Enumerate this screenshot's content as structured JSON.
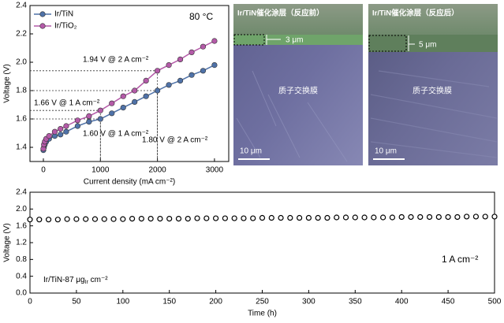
{
  "chart_data": [
    {
      "type": "line",
      "annotation": "80 °C",
      "xlabel": "Current density (mA cm⁻²)",
      "ylabel": "Voltage (V)",
      "x": [
        0,
        10,
        25,
        50,
        100,
        200,
        300,
        400,
        600,
        800,
        1000,
        1200,
        1400,
        1600,
        1800,
        2000,
        2200,
        2400,
        2600,
        2800,
        3000
      ],
      "series": [
        {
          "name": "Ir/TiN",
          "color": "#4f72a8",
          "values": [
            1.38,
            1.4,
            1.42,
            1.44,
            1.46,
            1.48,
            1.49,
            1.51,
            1.55,
            1.58,
            1.6,
            1.64,
            1.68,
            1.72,
            1.76,
            1.8,
            1.84,
            1.87,
            1.91,
            1.94,
            1.98
          ]
        },
        {
          "name": "Ir/TiO₂",
          "color": "#b45aa8",
          "values": [
            1.39,
            1.42,
            1.44,
            1.46,
            1.48,
            1.51,
            1.53,
            1.55,
            1.59,
            1.62,
            1.66,
            1.71,
            1.76,
            1.8,
            1.87,
            1.94,
            1.98,
            2.02,
            2.07,
            2.11,
            2.15
          ]
        }
      ],
      "guides": [
        {
          "x": 2000,
          "y": 1.94,
          "label": "1.94 V @ 2 A cm⁻²"
        },
        {
          "x": 1000,
          "y": 1.66,
          "label": "1.66 V @ 1 A cm⁻²"
        },
        {
          "x": 2000,
          "y": 1.8,
          "label": "1.80 V @ 2 A cm⁻²"
        },
        {
          "x": 1000,
          "y": 1.6,
          "label": "1.60 V @ 1 A cm⁻²"
        }
      ],
      "xlim": [
        -235,
        3250
      ],
      "ylim": [
        1.3,
        2.4
      ],
      "xticks": [
        0,
        1000,
        2000,
        3000
      ],
      "yticks": [
        1.4,
        1.6,
        1.8,
        {
          "value": 2,
          "label": "2.0"
        },
        2.2,
        2.4
      ],
      "legend": "upper left"
    },
    {
      "type": "scatter",
      "annotation": "1 A cm⁻²",
      "sample_label": {
        "text": "Ir/TiN-87 μg",
        "sub": "Ir",
        "tail": " cm⁻²"
      },
      "xlabel": "Time (h)",
      "ylabel": "Voltage (V)",
      "x": [
        0,
        10,
        20,
        30,
        40,
        50,
        60,
        70,
        80,
        90,
        100,
        110,
        120,
        130,
        140,
        150,
        160,
        170,
        180,
        190,
        200,
        210,
        220,
        230,
        240,
        250,
        260,
        270,
        280,
        290,
        300,
        310,
        320,
        330,
        340,
        350,
        360,
        370,
        380,
        390,
        400,
        410,
        420,
        430,
        440,
        450,
        460,
        470,
        480,
        490,
        500
      ],
      "series": [
        {
          "color": "#000000",
          "values": [
            1.75,
            1.75,
            1.75,
            1.75,
            1.76,
            1.76,
            1.76,
            1.76,
            1.76,
            1.76,
            1.76,
            1.77,
            1.77,
            1.77,
            1.77,
            1.77,
            1.77,
            1.77,
            1.78,
            1.78,
            1.78,
            1.78,
            1.78,
            1.78,
            1.78,
            1.79,
            1.79,
            1.79,
            1.79,
            1.79,
            1.79,
            1.79,
            1.79,
            1.8,
            1.8,
            1.8,
            1.8,
            1.8,
            1.8,
            1.8,
            1.81,
            1.81,
            1.81,
            1.81,
            1.81,
            1.81,
            1.81,
            1.82,
            1.82,
            1.82,
            1.82
          ]
        }
      ],
      "xlim": [
        0,
        500
      ],
      "ylim": [
        0,
        2.4
      ],
      "xticks": [
        0,
        50,
        100,
        150,
        200,
        250,
        300,
        350,
        400,
        450,
        500
      ],
      "yticks": [
        {
          "value": 0,
          "label": "0.0"
        },
        0.4,
        0.8,
        1.2,
        1.6,
        {
          "value": 2,
          "label": "2.0"
        },
        2.4
      ]
    }
  ],
  "images": [
    {
      "title": "Ir/TiN催化涂层（反应前）",
      "thickness": "3 μm",
      "region": "质子交换膜",
      "scale_bar": "10 μm"
    },
    {
      "title": "Ir/TiN催化涂层（反应后）",
      "thickness": "5 μm",
      "region": "质子交换膜",
      "scale_bar": "10 μm"
    }
  ]
}
